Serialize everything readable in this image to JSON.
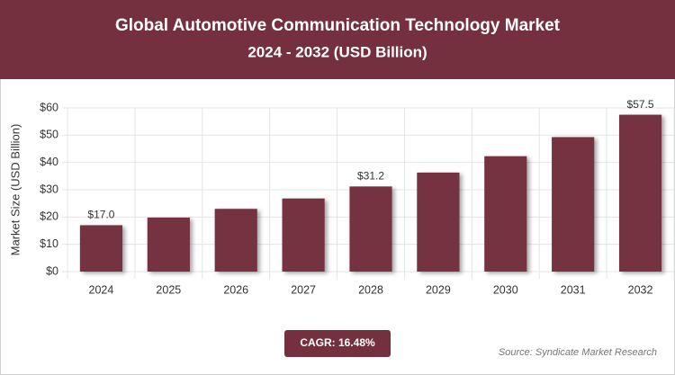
{
  "chart_data": {
    "type": "bar",
    "title": "Global Automotive Communication Technology Market",
    "subtitle": "2024 - 2032 (USD Billion)",
    "y_label": "Market Size (USD Billion)",
    "categories": [
      "2024",
      "2025",
      "2026",
      "2027",
      "2028",
      "2029",
      "2030",
      "2031",
      "2032"
    ],
    "values": [
      17.0,
      19.8,
      23.0,
      26.8,
      31.2,
      36.3,
      42.3,
      49.3,
      57.5
    ],
    "value_labels": [
      "$17.0",
      null,
      null,
      null,
      "$31.2",
      null,
      null,
      null,
      "$57.5"
    ],
    "color": "#74303f",
    "ylim": [
      0,
      60
    ],
    "yticks": [
      {
        "value": 0,
        "label": "$0"
      },
      {
        "value": 10,
        "label": "$10"
      },
      {
        "value": 20,
        "label": "$20"
      },
      {
        "value": 30,
        "label": "$30"
      },
      {
        "value": 40,
        "label": "$40"
      },
      {
        "value": 50,
        "label": "$50"
      },
      {
        "value": 60,
        "label": "$60"
      }
    ],
    "grid": true,
    "cagr": "CAGR: 16.48%",
    "source": "Source: Syndicate Market Research"
  }
}
